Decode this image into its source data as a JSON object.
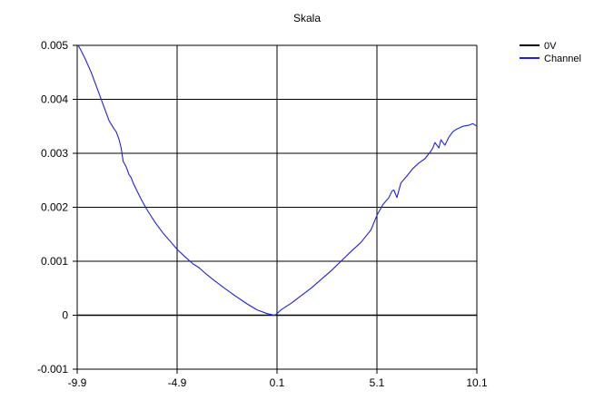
{
  "chart_data": {
    "type": "line",
    "title": "Skala",
    "xlabel": "",
    "ylabel": "",
    "xlim": [
      -9.9,
      10.1
    ],
    "ylim": [
      -0.001,
      0.005
    ],
    "x_ticks": [
      -9.9,
      -4.9,
      0.1,
      5.1,
      10.1
    ],
    "x_tick_labels": [
      "-9.9",
      "-4.9",
      "0.1",
      "5.1",
      "10.1"
    ],
    "y_ticks": [
      -0.001,
      0,
      0.001,
      0.002,
      0.003,
      0.004,
      0.005
    ],
    "y_tick_labels": [
      "-0.001",
      "0",
      "0.001",
      "0.002",
      "0.003",
      "0.004",
      "0.005"
    ],
    "grid": true,
    "legend_position": "top-right",
    "series": [
      {
        "name": "0V",
        "color": "#000000",
        "x": [
          -9.9,
          10.1
        ],
        "y": [
          0,
          0
        ]
      },
      {
        "name": "Channel",
        "color": "#2020e0",
        "x": [
          -9.85,
          -9.7,
          -9.5,
          -9.2,
          -8.9,
          -8.6,
          -8.3,
          -8.05,
          -7.95,
          -7.8,
          -7.7,
          -7.6,
          -7.45,
          -7.3,
          -7.2,
          -7.1,
          -6.9,
          -6.7,
          -6.4,
          -6.0,
          -5.6,
          -5.2,
          -4.9,
          -4.5,
          -4.1,
          -3.8,
          -3.5,
          -3.1,
          -2.6,
          -2.0,
          -1.4,
          -0.9,
          -0.4,
          -0.05,
          0.0,
          0.1,
          0.3,
          0.8,
          1.3,
          1.8,
          2.3,
          2.8,
          3.3,
          3.8,
          4.3,
          4.8,
          5.1,
          5.4,
          5.7,
          5.85,
          5.95,
          6.1,
          6.3,
          6.6,
          6.9,
          7.2,
          7.5,
          7.8,
          7.9,
          8.0,
          8.1,
          8.2,
          8.3,
          8.5,
          8.7,
          8.9,
          9.1,
          9.4,
          9.7,
          9.9,
          10.1
        ],
        "y": [
          0.005,
          0.0049,
          0.00475,
          0.0045,
          0.0042,
          0.0039,
          0.0036,
          0.00345,
          0.0034,
          0.00325,
          0.0031,
          0.00285,
          0.00275,
          0.0026,
          0.00255,
          0.00245,
          0.0023,
          0.00215,
          0.00195,
          0.00172,
          0.00152,
          0.00135,
          0.00122,
          0.00108,
          0.00095,
          0.00088,
          0.00078,
          0.00066,
          0.00052,
          0.00036,
          0.00021,
          0.0001,
          3e-05,
          0.0,
          0.0,
          3e-05,
          0.0001,
          0.00022,
          0.00036,
          0.0005,
          0.00066,
          0.00082,
          0.001,
          0.00118,
          0.00135,
          0.00158,
          0.00185,
          0.00205,
          0.00218,
          0.0023,
          0.00232,
          0.00218,
          0.00245,
          0.00258,
          0.00272,
          0.00282,
          0.0029,
          0.00304,
          0.0031,
          0.0032,
          0.00315,
          0.0031,
          0.00325,
          0.00315,
          0.0033,
          0.0034,
          0.00345,
          0.0035,
          0.00352,
          0.00355,
          0.0035
        ]
      }
    ]
  }
}
